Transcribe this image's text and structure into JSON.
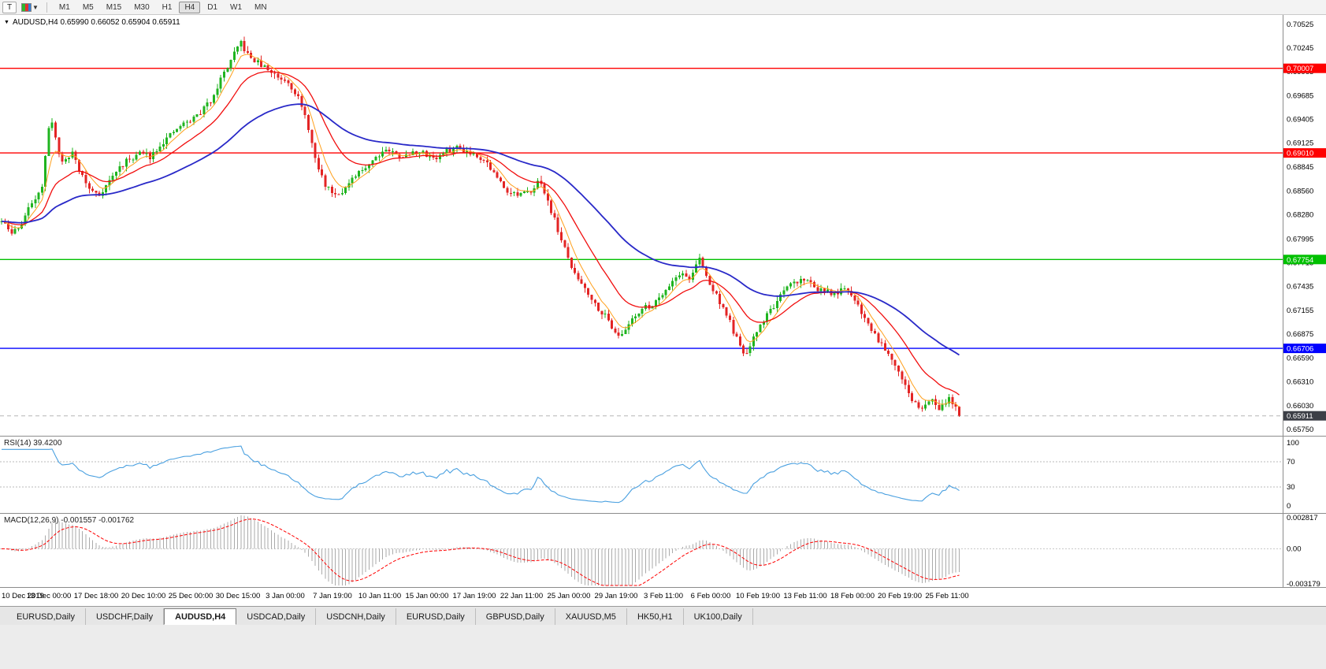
{
  "toolbar": {
    "tool_button": "T",
    "timeframes": [
      "M1",
      "M5",
      "M15",
      "M30",
      "H1",
      "H4",
      "D1",
      "W1",
      "MN"
    ],
    "active_timeframe": "H4"
  },
  "chart": {
    "marker": "▼",
    "title": "AUDUSD,H4 0.65990 0.66052 0.65904 0.65911"
  },
  "tabs": {
    "items": [
      "EURUSD,Daily",
      "USDCHF,Daily",
      "AUDUSD,H4",
      "USDCAD,Daily",
      "USDCNH,Daily",
      "EURUSD,Daily",
      "GBPUSD,Daily",
      "XAUUSD,M5",
      "HK50,H1",
      "UK100,Daily"
    ],
    "active_index": 2
  },
  "chart_data": {
    "type": "candlestick",
    "symbol": "AUDUSD",
    "timeframe": "H4",
    "bars": 285,
    "bar_spacing": 4.28,
    "last_close": 0.65911,
    "noise_seed": 11,
    "close_noise": 0.0007,
    "wick_noise": 0.0006,
    "colors": {
      "up": "#1fb41f",
      "down": "#e32424",
      "ema_fast": "#ff9f1a",
      "ema_mid": "#f10e0e",
      "ema_slow": "#2929c8",
      "rsi": "#4aa0e0",
      "macd_hist": "#aaaaaa",
      "macd_signal": "#ff0000"
    },
    "main": {
      "price_max": 0.70636,
      "price_min": 0.65676,
      "axis_labels": [
        "0.70525",
        "0.70245",
        "0.69965",
        "0.69685",
        "0.69405",
        "0.69125",
        "0.68845",
        "0.68560",
        "0.68280",
        "0.67995",
        "0.67715",
        "0.67435",
        "0.67155",
        "0.66875",
        "0.66590",
        "0.66310",
        "0.66030",
        "0.65750"
      ],
      "hlines": [
        {
          "value": 0.70007,
          "label": "0.70007",
          "color": "#ff0000"
        },
        {
          "value": 0.6901,
          "label": "0.69010",
          "color": "#ff0000"
        },
        {
          "value": 0.67754,
          "label": "0.67754",
          "color": "#00c000"
        },
        {
          "value": 0.66706,
          "label": "0.66706",
          "color": "#0000ff"
        }
      ],
      "bid": {
        "value": 0.65911,
        "label": "0.65911",
        "badge_color": "#3c3f46"
      }
    },
    "close_path_anchors": [
      [
        0,
        0.682
      ],
      [
        3,
        0.6806
      ],
      [
        6,
        0.6818
      ],
      [
        9,
        0.6843
      ],
      [
        12,
        0.6862
      ],
      [
        14,
        0.6928
      ],
      [
        15,
        0.694
      ],
      [
        17,
        0.6898
      ],
      [
        19,
        0.689
      ],
      [
        21,
        0.6903
      ],
      [
        23,
        0.6882
      ],
      [
        26,
        0.6858
      ],
      [
        29,
        0.6852
      ],
      [
        32,
        0.6868
      ],
      [
        35,
        0.6884
      ],
      [
        38,
        0.6894
      ],
      [
        41,
        0.6901
      ],
      [
        44,
        0.6897
      ],
      [
        47,
        0.6911
      ],
      [
        50,
        0.6921
      ],
      [
        53,
        0.6933
      ],
      [
        56,
        0.6939
      ],
      [
        59,
        0.6949
      ],
      [
        62,
        0.6963
      ],
      [
        65,
        0.6988
      ],
      [
        68,
        0.701
      ],
      [
        71,
        0.7031
      ],
      [
        73,
        0.7016
      ],
      [
        76,
        0.7007
      ],
      [
        79,
        0.6999
      ],
      [
        82,
        0.6991
      ],
      [
        85,
        0.6986
      ],
      [
        88,
        0.6966
      ],
      [
        91,
        0.6931
      ],
      [
        93,
        0.6892
      ],
      [
        96,
        0.6863
      ],
      [
        99,
        0.6853
      ],
      [
        102,
        0.6859
      ],
      [
        105,
        0.6873
      ],
      [
        108,
        0.6885
      ],
      [
        111,
        0.6897
      ],
      [
        114,
        0.6906
      ],
      [
        117,
        0.6899
      ],
      [
        120,
        0.6897
      ],
      [
        123,
        0.6903
      ],
      [
        126,
        0.6899
      ],
      [
        129,
        0.6895
      ],
      [
        132,
        0.6903
      ],
      [
        135,
        0.6908
      ],
      [
        138,
        0.6903
      ],
      [
        141,
        0.6899
      ],
      [
        144,
        0.6889
      ],
      [
        147,
        0.6871
      ],
      [
        150,
        0.6857
      ],
      [
        153,
        0.6851
      ],
      [
        156,
        0.6853
      ],
      [
        159,
        0.6867
      ],
      [
        161,
        0.6856
      ],
      [
        164,
        0.6822
      ],
      [
        167,
        0.6787
      ],
      [
        170,
        0.6757
      ],
      [
        173,
        0.6743
      ],
      [
        176,
        0.6723
      ],
      [
        179,
        0.6709
      ],
      [
        182,
        0.6691
      ],
      [
        184,
        0.6685
      ],
      [
        187,
        0.6707
      ],
      [
        190,
        0.6717
      ],
      [
        193,
        0.6722
      ],
      [
        197,
        0.6741
      ],
      [
        201,
        0.6759
      ],
      [
        204,
        0.6753
      ],
      [
        207,
        0.6776
      ],
      [
        210,
        0.6746
      ],
      [
        213,
        0.6726
      ],
      [
        216,
        0.6701
      ],
      [
        219,
        0.6671
      ],
      [
        221,
        0.6663
      ],
      [
        224,
        0.6691
      ],
      [
        227,
        0.6711
      ],
      [
        230,
        0.6726
      ],
      [
        234,
        0.6746
      ],
      [
        238,
        0.6753
      ],
      [
        242,
        0.6741
      ],
      [
        246,
        0.6735
      ],
      [
        250,
        0.6739
      ],
      [
        253,
        0.6729
      ],
      [
        256,
        0.6706
      ],
      [
        260,
        0.6681
      ],
      [
        263,
        0.6666
      ],
      [
        266,
        0.6646
      ],
      [
        269,
        0.6616
      ],
      [
        272,
        0.6599
      ],
      [
        275,
        0.6611
      ],
      [
        278,
        0.6601
      ],
      [
        281,
        0.6613
      ],
      [
        284,
        0.65911
      ]
    ],
    "ema_periods": {
      "fast": 6,
      "mid": 18,
      "slow": 55
    },
    "rsi": {
      "period": 14,
      "label": "RSI(14) 39.4200",
      "last": 39.42,
      "levels": [
        70,
        30
      ],
      "axis_labels": [
        "100",
        "70",
        "30",
        "0"
      ]
    },
    "macd": {
      "params": "12,26,9",
      "label": "MACD(12,26,9) -0.001557 -0.001762",
      "value": -0.001557,
      "signal": -0.001762,
      "vmax": 0.002817,
      "vmin": -0.003179,
      "axis_labels": [
        "0.002817",
        "0.00",
        "-0.003179"
      ]
    },
    "time_labels": [
      "10 Dec 2019",
      "13 Dec 00:00",
      "17 Dec 18:00",
      "20 Dec 10:00",
      "25 Dec 00:00",
      "30 Dec 15:00",
      "3 Jan 00:00",
      "7 Jan 19:00",
      "10 Jan 11:00",
      "15 Jan 00:00",
      "17 Jan 19:00",
      "22 Jan 11:00",
      "25 Jan 00:00",
      "29 Jan 19:00",
      "3 Feb 11:00",
      "6 Feb 00:00",
      "10 Feb 19:00",
      "13 Feb 11:00",
      "18 Feb 00:00",
      "20 Feb 19:00",
      "25 Feb 11:00"
    ]
  }
}
